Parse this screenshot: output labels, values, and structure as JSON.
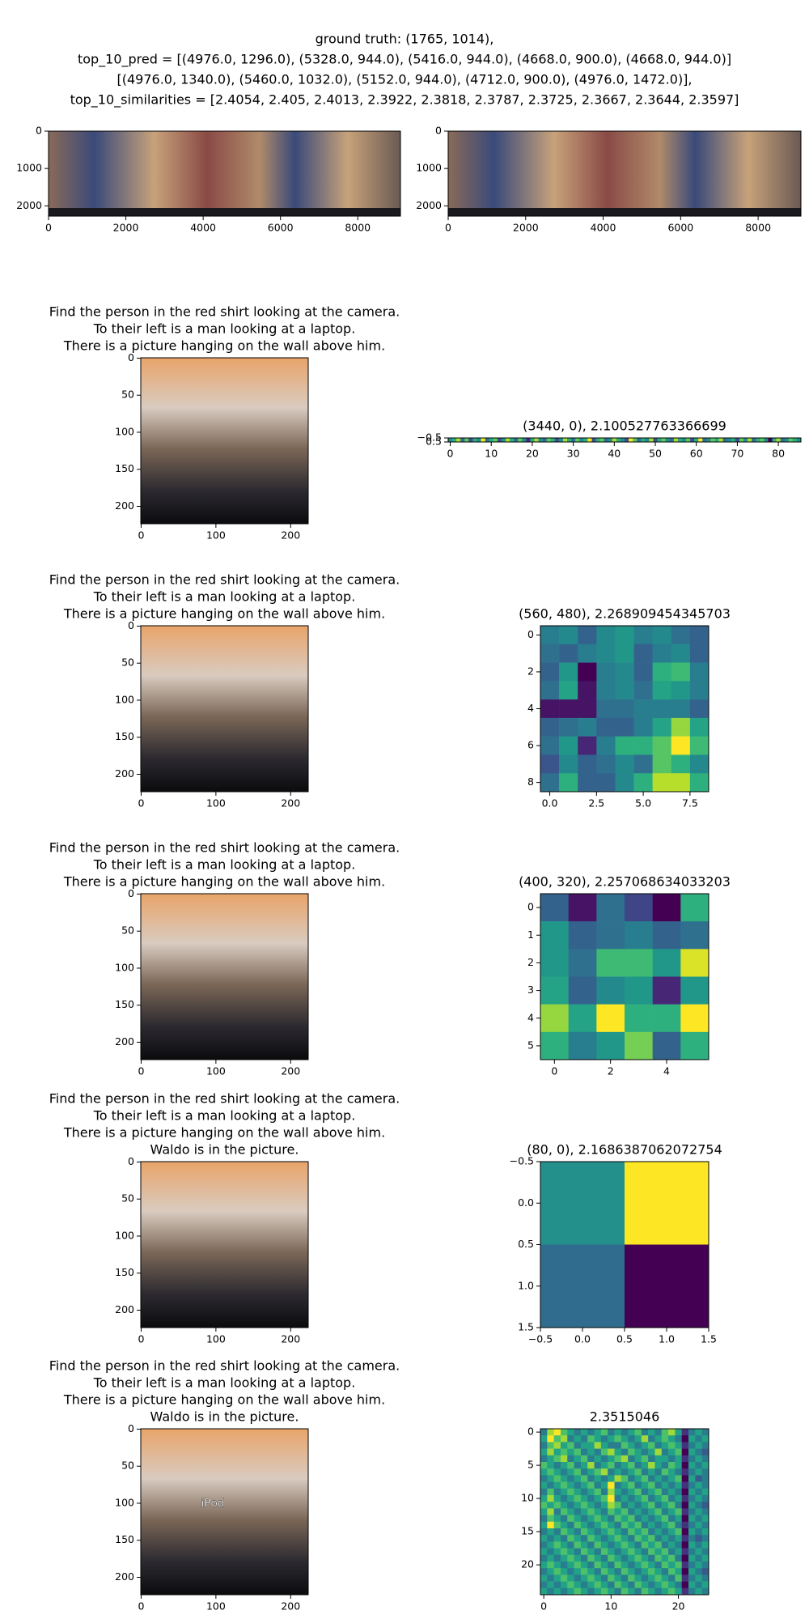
{
  "title_lines": [
    "ground truth: (1765, 1014),",
    "top_10_pred = [(4976.0, 1296.0), (5328.0, 944.0), (5416.0, 944.0), (4668.0, 900.0), (4668.0, 944.0)]",
    "[(4976.0, 1340.0), (5460.0, 1032.0), (5152.0, 944.0), (4712.0, 900.0), (4976.0, 1472.0)],",
    "top_10_similarities = [2.4054, 2.405, 2.4013, 2.3922, 2.3818, 2.3787, 2.3725, 2.3667, 2.3644, 2.3597]"
  ],
  "chart_data": [
    {
      "type": "image",
      "xlim": [
        0,
        9104
      ],
      "ylim": [
        2276,
        0
      ],
      "xticks": [
        0,
        2000,
        4000,
        6000,
        8000
      ],
      "yticks": [
        0,
        1000,
        2000
      ]
    },
    {
      "type": "image",
      "xlim": [
        0,
        9104
      ],
      "ylim": [
        2276,
        0
      ],
      "xticks": [
        0,
        2000,
        4000,
        6000,
        8000
      ],
      "yticks": [
        0,
        1000,
        2000
      ]
    },
    {
      "type": "image",
      "caption_lines": [
        "Find the person in the red shirt looking at the camera.",
        "To their left is a man looking at a laptop.",
        "There is a picture hanging on the wall above him."
      ],
      "xlim": [
        -0.5,
        223.5
      ],
      "ylim": [
        223.5,
        -0.5
      ],
      "xticks": [
        0,
        100,
        200
      ],
      "yticks": [
        0,
        50,
        100,
        150,
        200
      ]
    },
    {
      "type": "heatmap",
      "title": "(3440, 0), 2.100527763366699",
      "xlim": [
        -0.5,
        85.5
      ],
      "ylim": [
        0.5,
        -0.5
      ],
      "xticks": [
        0,
        10,
        20,
        30,
        40,
        50,
        60,
        70,
        80
      ],
      "yticks": [
        {
          "value": -0.5,
          "label": "−0.5"
        },
        0.5
      ],
      "values": [
        [
          5,
          6,
          8,
          4,
          7,
          3,
          6,
          5,
          9,
          4,
          6,
          7,
          3,
          5,
          8,
          6,
          4,
          7,
          5,
          2,
          6,
          8,
          5,
          4,
          7,
          6,
          3,
          5,
          8,
          6,
          4,
          7,
          5,
          6,
          9,
          3,
          6,
          7,
          4,
          5,
          8,
          6,
          5,
          3,
          9,
          7,
          4,
          6,
          5,
          8,
          3,
          6,
          7,
          5,
          4,
          8,
          6,
          5,
          7,
          3,
          6,
          9,
          4,
          5,
          7,
          6,
          8,
          4,
          5,
          6,
          3,
          7,
          5,
          8,
          4,
          6,
          7,
          5,
          1,
          6,
          8,
          4,
          5,
          7,
          6,
          5
        ]
      ]
    },
    {
      "type": "image",
      "caption_lines": [
        "Find the person in the red shirt looking at the camera.",
        "To their left is a man looking at a laptop.",
        "There is a picture hanging on the wall above him."
      ],
      "xlim": [
        -0.5,
        223.5
      ],
      "ylim": [
        223.5,
        -0.5
      ],
      "xticks": [
        0,
        100,
        200
      ],
      "yticks": [
        0,
        50,
        100,
        150,
        200
      ]
    },
    {
      "type": "heatmap",
      "title": "(560, 480), 2.268909454345703",
      "xlim": [
        -0.5,
        8.5
      ],
      "ylim": [
        8.5,
        -0.5
      ],
      "xticks": [
        {
          "value": 0,
          "label": "0.0"
        },
        2.5,
        {
          "value": 5,
          "label": "5.0"
        },
        7.5
      ],
      "yticks": [
        0,
        2,
        4,
        6,
        8
      ],
      "values": [
        [
          4,
          4.5,
          3,
          4.5,
          5,
          4,
          4.5,
          3.5,
          3
        ],
        [
          3.5,
          3,
          4,
          4.5,
          5,
          3,
          4,
          4.5,
          3
        ],
        [
          3,
          5,
          0,
          4,
          4.5,
          3,
          6,
          6.5,
          4
        ],
        [
          3.5,
          5.5,
          0.5,
          4,
          4.5,
          3.5,
          5.5,
          5,
          4
        ],
        [
          0.5,
          0.5,
          0.5,
          3.5,
          3.5,
          4,
          4,
          4,
          3
        ],
        [
          3,
          3.5,
          4,
          3,
          3,
          4,
          5.5,
          8,
          5.5
        ],
        [
          3.5,
          5,
          1,
          4,
          6,
          6,
          7,
          9.5,
          6.5
        ],
        [
          2.5,
          4.5,
          3,
          3.5,
          4.5,
          3.5,
          7,
          6,
          4.5
        ],
        [
          3.5,
          6,
          3,
          3,
          4.5,
          6,
          8.5,
          8.5,
          6
        ]
      ]
    },
    {
      "type": "image",
      "caption_lines": [
        "Find the person in the red shirt looking at the camera.",
        "To their left is a man looking at a laptop.",
        "There is a picture hanging on the wall above him."
      ],
      "xlim": [
        -0.5,
        223.5
      ],
      "ylim": [
        223.5,
        -0.5
      ],
      "xticks": [
        0,
        100,
        200
      ],
      "yticks": [
        0,
        50,
        100,
        150,
        200
      ]
    },
    {
      "type": "heatmap",
      "title": "(400, 320), 2.257068634033203",
      "xlim": [
        -0.5,
        5.5
      ],
      "ylim": [
        5.5,
        -0.5
      ],
      "xticks": [
        0,
        2,
        4
      ],
      "yticks": [
        0,
        1,
        2,
        3,
        4,
        5
      ],
      "values": [
        [
          3,
          0.5,
          3.5,
          2,
          0,
          6
        ],
        [
          5,
          3,
          3.5,
          4,
          3,
          3.5
        ],
        [
          5,
          3.5,
          6.5,
          6.5,
          5,
          9
        ],
        [
          5.5,
          3,
          4.5,
          5,
          1,
          5
        ],
        [
          8,
          5.5,
          9.5,
          6,
          6,
          9.5
        ],
        [
          6,
          4,
          5,
          7.5,
          3,
          6
        ]
      ]
    },
    {
      "type": "image",
      "caption_lines": [
        "Find the person in the red shirt looking at the camera.",
        "To their left is a man looking at a laptop.",
        "There is a picture hanging on the wall above him.",
        "Waldo is in the picture."
      ],
      "xlim": [
        -0.5,
        223.5
      ],
      "ylim": [
        223.5,
        -0.5
      ],
      "xticks": [
        0,
        100,
        200
      ],
      "yticks": [
        0,
        50,
        100,
        150,
        200
      ]
    },
    {
      "type": "heatmap",
      "title": "(80, 0), 2.1686387062072754",
      "xlim": [
        -0.5,
        1.5
      ],
      "ylim": [
        1.5,
        -0.5
      ],
      "xticks": [
        {
          "value": -0.5,
          "label": "−0.5"
        },
        {
          "value": 0,
          "label": "0.0"
        },
        0.5,
        {
          "value": 1,
          "label": "1.0"
        },
        1.5
      ],
      "yticks": [
        {
          "value": -0.5,
          "label": "−0.5"
        },
        {
          "value": 0,
          "label": "0.0"
        },
        0.5,
        {
          "value": 1,
          "label": "1.0"
        },
        1.5
      ],
      "values": [
        [
          5,
          10
        ],
        [
          3.5,
          0
        ]
      ]
    },
    {
      "type": "image",
      "caption_lines": [
        "Find the person in the red shirt looking at the camera.",
        "To their left is a man looking at a laptop.",
        "There is a picture hanging on the wall above him.",
        "Waldo is in the picture."
      ],
      "overlay_text": "iPod",
      "xlim": [
        -0.5,
        223.5
      ],
      "ylim": [
        223.5,
        -0.5
      ],
      "xticks": [
        0,
        100,
        200
      ],
      "yticks": [
        0,
        50,
        100,
        150,
        200
      ]
    },
    {
      "type": "heatmap",
      "title": "2.3515046",
      "xlim": [
        -0.5,
        24.5
      ],
      "ylim": [
        24.5,
        -0.5
      ],
      "xticks": [
        0,
        10,
        20
      ],
      "yticks": [
        0,
        5,
        10,
        15,
        20
      ],
      "values": [
        [
          5,
          8,
          9,
          7,
          6,
          5,
          6,
          5,
          6,
          7,
          5,
          6,
          5,
          6,
          7,
          5,
          6,
          5,
          7,
          8,
          6,
          3,
          5,
          6,
          5
        ],
        [
          6,
          9,
          7,
          8,
          5,
          6,
          5,
          7,
          6,
          5,
          6,
          7,
          6,
          5,
          6,
          8,
          5,
          6,
          7,
          6,
          5,
          2,
          6,
          5,
          6
        ],
        [
          5,
          7,
          8,
          6,
          7,
          5,
          6,
          6,
          8,
          6,
          5,
          5,
          7,
          6,
          5,
          6,
          7,
          5,
          6,
          7,
          6,
          3,
          5,
          6,
          5
        ],
        [
          6,
          8,
          6,
          7,
          6,
          7,
          5,
          6,
          5,
          7,
          8,
          6,
          5,
          7,
          6,
          5,
          6,
          8,
          5,
          6,
          7,
          2,
          6,
          5,
          4
        ],
        [
          5,
          6,
          7,
          8,
          5,
          6,
          7,
          5,
          6,
          5,
          6,
          7,
          8,
          5,
          6,
          7,
          5,
          6,
          6,
          5,
          6,
          3,
          5,
          6,
          5
        ],
        [
          7,
          6,
          5,
          6,
          7,
          5,
          6,
          8,
          5,
          6,
          7,
          5,
          6,
          7,
          5,
          6,
          8,
          6,
          5,
          7,
          6,
          2,
          6,
          5,
          6
        ],
        [
          6,
          7,
          6,
          5,
          6,
          7,
          5,
          6,
          7,
          8,
          5,
          6,
          5,
          6,
          7,
          5,
          6,
          5,
          7,
          6,
          5,
          3,
          5,
          6,
          5
        ],
        [
          5,
          6,
          7,
          6,
          5,
          6,
          7,
          5,
          6,
          5,
          6,
          8,
          7,
          5,
          6,
          7,
          5,
          6,
          5,
          6,
          7,
          2,
          6,
          4,
          5
        ],
        [
          6,
          5,
          6,
          7,
          6,
          5,
          6,
          7,
          5,
          6,
          9,
          5,
          6,
          7,
          5,
          6,
          7,
          5,
          6,
          5,
          6,
          3,
          5,
          6,
          5
        ],
        [
          5,
          7,
          5,
          6,
          7,
          6,
          5,
          6,
          7,
          5,
          8,
          6,
          5,
          6,
          7,
          5,
          6,
          7,
          5,
          6,
          5,
          2,
          6,
          5,
          6
        ],
        [
          6,
          8,
          6,
          5,
          6,
          7,
          6,
          5,
          6,
          7,
          9,
          5,
          6,
          5,
          6,
          7,
          5,
          6,
          7,
          5,
          6,
          3,
          5,
          6,
          5
        ],
        [
          7,
          6,
          7,
          6,
          5,
          6,
          7,
          6,
          5,
          6,
          8,
          7,
          5,
          6,
          5,
          6,
          7,
          5,
          6,
          7,
          5,
          2,
          6,
          5,
          4
        ],
        [
          6,
          8,
          5,
          7,
          6,
          5,
          6,
          7,
          6,
          5,
          7,
          6,
          7,
          5,
          6,
          5,
          6,
          7,
          5,
          6,
          7,
          3,
          5,
          6,
          5
        ],
        [
          5,
          7,
          6,
          5,
          7,
          6,
          5,
          6,
          7,
          6,
          5,
          7,
          6,
          7,
          5,
          6,
          5,
          6,
          7,
          5,
          6,
          2,
          6,
          5,
          6
        ],
        [
          6,
          9,
          7,
          6,
          5,
          7,
          6,
          5,
          6,
          7,
          6,
          5,
          7,
          6,
          7,
          5,
          6,
          5,
          6,
          7,
          5,
          3,
          5,
          6,
          5
        ],
        [
          5,
          6,
          5,
          7,
          6,
          5,
          7,
          6,
          5,
          6,
          7,
          6,
          5,
          7,
          6,
          7,
          5,
          6,
          5,
          6,
          7,
          2,
          6,
          5,
          6
        ],
        [
          6,
          5,
          6,
          5,
          7,
          6,
          5,
          7,
          6,
          5,
          6,
          7,
          6,
          5,
          7,
          6,
          7,
          5,
          6,
          5,
          6,
          3,
          5,
          4,
          5
        ],
        [
          5,
          6,
          7,
          6,
          5,
          7,
          6,
          5,
          7,
          6,
          5,
          6,
          7,
          6,
          5,
          7,
          6,
          7,
          5,
          6,
          5,
          2,
          6,
          5,
          6
        ],
        [
          6,
          5,
          6,
          7,
          6,
          5,
          7,
          6,
          5,
          7,
          6,
          5,
          6,
          7,
          6,
          5,
          7,
          6,
          7,
          5,
          6,
          3,
          5,
          6,
          5
        ],
        [
          5,
          6,
          5,
          6,
          7,
          6,
          5,
          7,
          6,
          5,
          7,
          6,
          5,
          6,
          7,
          6,
          5,
          7,
          6,
          7,
          5,
          2,
          6,
          5,
          6
        ],
        [
          6,
          7,
          6,
          5,
          6,
          7,
          6,
          5,
          7,
          6,
          5,
          7,
          6,
          5,
          6,
          7,
          6,
          5,
          7,
          6,
          7,
          3,
          5,
          6,
          5
        ],
        [
          5,
          6,
          7,
          6,
          5,
          6,
          7,
          6,
          5,
          7,
          6,
          5,
          7,
          6,
          5,
          6,
          7,
          6,
          5,
          7,
          6,
          2,
          6,
          5,
          4
        ],
        [
          6,
          5,
          6,
          7,
          6,
          5,
          6,
          7,
          6,
          5,
          7,
          6,
          5,
          7,
          6,
          5,
          6,
          7,
          6,
          5,
          7,
          3,
          5,
          6,
          5
        ],
        [
          5,
          6,
          5,
          6,
          7,
          6,
          5,
          6,
          7,
          6,
          5,
          7,
          6,
          5,
          7,
          6,
          5,
          6,
          7,
          6,
          5,
          2,
          6,
          5,
          6
        ],
        [
          6,
          5,
          6,
          5,
          6,
          7,
          6,
          5,
          6,
          7,
          6,
          5,
          7,
          6,
          5,
          7,
          6,
          5,
          6,
          7,
          6,
          3,
          5,
          6,
          5
        ]
      ]
    }
  ]
}
